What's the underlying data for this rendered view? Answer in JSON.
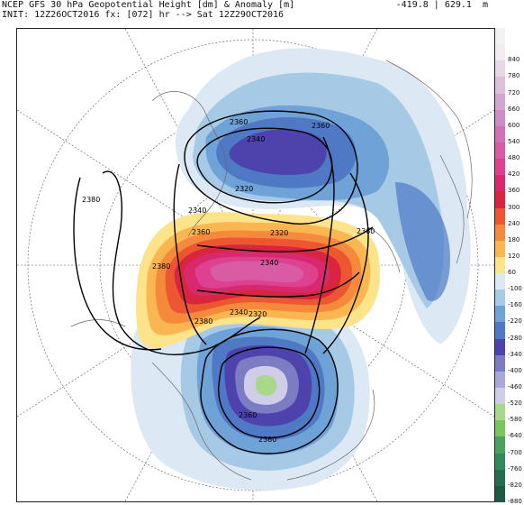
{
  "header": {
    "title": "NCEP GFS 30 hPa Geopotential Height [dm] & Anomaly [m]",
    "init": "INIT: 12Z26OCT2016 fx: [072] hr --> Sat 12Z29OCT2016",
    "minmax": "-419.8 | 629.1  m"
  },
  "colorbar": {
    "levels": [
      {
        "label": "",
        "color": "#f2f2f2"
      },
      {
        "label": "840",
        "color": "#f0ecf0"
      },
      {
        "label": "780",
        "color": "#e6d8e6"
      },
      {
        "label": "720",
        "color": "#dcc0dc"
      },
      {
        "label": "660",
        "color": "#d2a6d0"
      },
      {
        "label": "600",
        "color": "#cc8cc6"
      },
      {
        "label": "540",
        "color": "#d272b6"
      },
      {
        "label": "480",
        "color": "#d95ba4"
      },
      {
        "label": "420",
        "color": "#de4190"
      },
      {
        "label": "360",
        "color": "#d8286e"
      },
      {
        "label": "300",
        "color": "#d9253f"
      },
      {
        "label": "240",
        "color": "#ec5630"
      },
      {
        "label": "180",
        "color": "#f58a3c"
      },
      {
        "label": "120",
        "color": "#fab751"
      },
      {
        "label": "60",
        "color": "#fde38a"
      },
      {
        "label": "-100",
        "color": "#dce9f4"
      },
      {
        "label": "-160",
        "color": "#a6c9e6"
      },
      {
        "label": "-220",
        "color": "#6fa3d7"
      },
      {
        "label": "-280",
        "color": "#4f79c5"
      },
      {
        "label": "-340",
        "color": "#4e43ac"
      },
      {
        "label": "-400",
        "color": "#7b7cc4"
      },
      {
        "label": "-460",
        "color": "#a9a8d8"
      },
      {
        "label": "-520",
        "color": "#d0cde8"
      },
      {
        "label": "-580",
        "color": "#a8d98a"
      },
      {
        "label": "-640",
        "color": "#7cc45e"
      },
      {
        "label": "-700",
        "color": "#4aa35c"
      },
      {
        "label": "-760",
        "color": "#2f8a5c"
      },
      {
        "label": "-820",
        "color": "#246e4f"
      },
      {
        "label": "-880",
        "color": "#1d5a44"
      }
    ]
  },
  "map": {
    "colors": {
      "blue_light": "#dce9f4",
      "blue_1": "#a6c9e6",
      "blue_2": "#6fa3d7",
      "blue_3": "#4f79c5",
      "purple_1": "#4e43ac",
      "purple_2": "#7b7cc4",
      "purple_3": "#a9a8d8",
      "lilac": "#d0cde8",
      "green_low": "#a8d98a",
      "yellow": "#fde38a",
      "orange_1": "#fab751",
      "orange_2": "#f58a3c",
      "red_1": "#ec5630",
      "red_2": "#d9253f",
      "crimson": "#d8286e",
      "magenta": "#de4190",
      "pink": "#d95ba4"
    },
    "contour_labels": [
      "2380",
      "2380",
      "2380",
      "2360",
      "2360",
      "2360",
      "2360",
      "2340",
      "2340",
      "2340",
      "2340",
      "2320",
      "2320",
      "2320",
      "2360",
      "2380"
    ]
  }
}
